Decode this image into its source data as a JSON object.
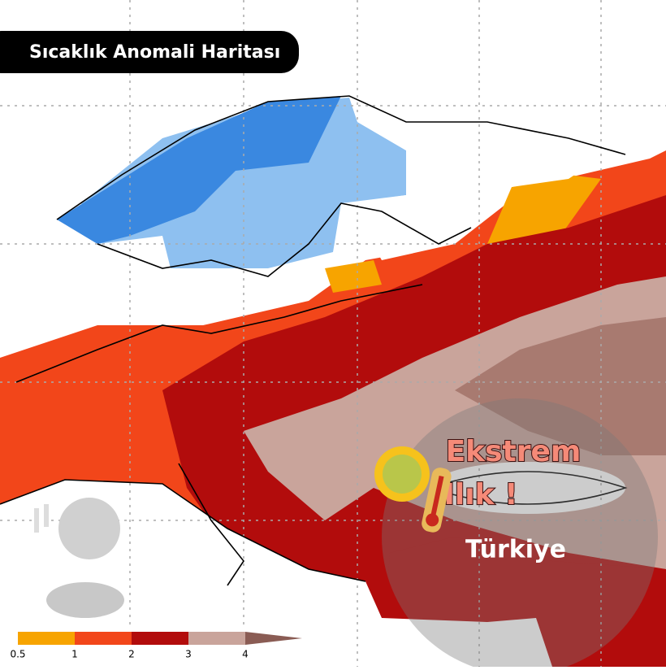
{
  "header": {
    "title": "Sıcaklık Anomali Haritası"
  },
  "badge": {
    "line1": "Ekstrem",
    "line2": "Ilık !",
    "region": "Türkiye"
  },
  "legend": {
    "labels": [
      "0.5",
      "1",
      "2",
      "3",
      "4"
    ],
    "colors": [
      "#f7a400",
      "#f2461a",
      "#b20c0c",
      "#c9a49b",
      "#8a5c54"
    ]
  }
}
